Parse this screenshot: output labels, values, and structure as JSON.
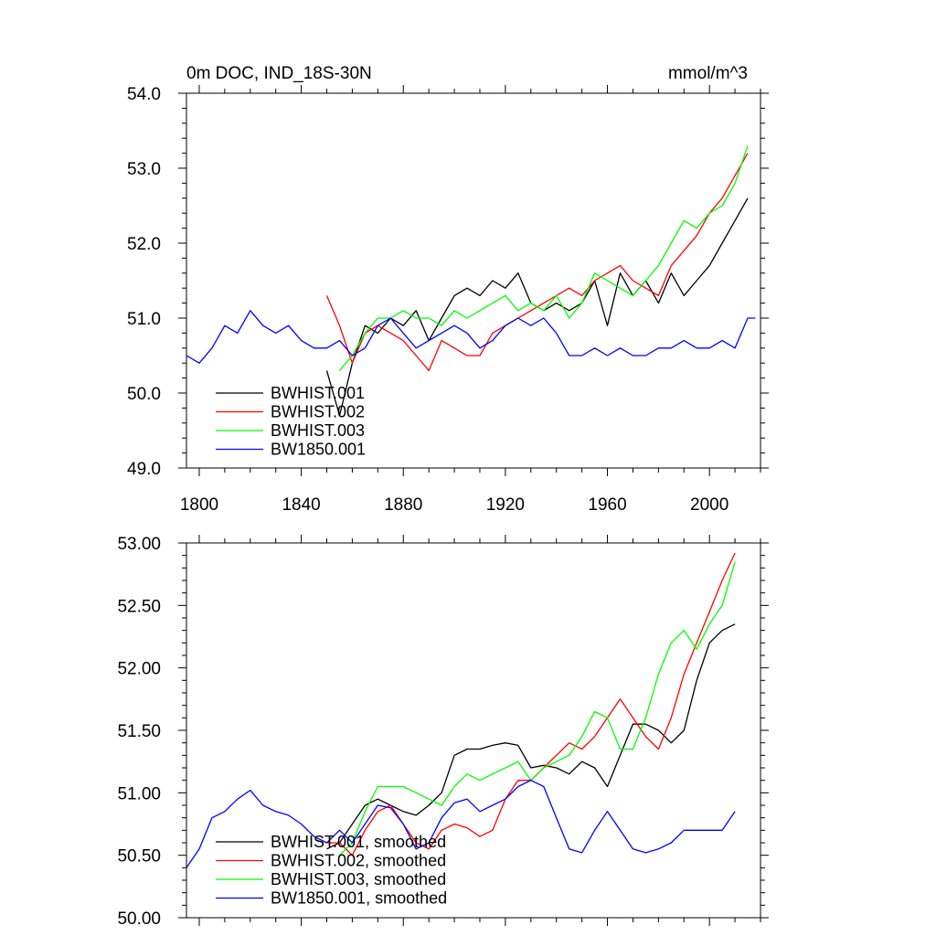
{
  "chart_data": [
    {
      "type": "line",
      "title": "0m DOC, IND_18S-30N",
      "unit_label": "mmol/m^3",
      "xlim": [
        1795,
        2020
      ],
      "ylim": [
        49.0,
        54.0
      ],
      "x_ticks": [
        1800,
        1840,
        1880,
        1920,
        1960,
        2000
      ],
      "x_tick_labels": [
        "1800",
        "1840",
        "1880",
        "1920",
        "1960",
        "2000"
      ],
      "y_ticks": [
        49,
        50,
        51,
        52,
        53,
        54
      ],
      "y_tick_labels": [
        "49.0",
        "50.0",
        "51.0",
        "52.0",
        "53.0",
        "54.0"
      ],
      "legend_position": "bottom-left",
      "grid": false,
      "series": [
        {
          "name": "BWHIST.001",
          "color": "#000000",
          "x": [
            1850,
            1855,
            1860,
            1865,
            1870,
            1875,
            1880,
            1885,
            1890,
            1895,
            1900,
            1905,
            1910,
            1915,
            1920,
            1925,
            1930,
            1935,
            1940,
            1945,
            1950,
            1955,
            1960,
            1965,
            1970,
            1975,
            1980,
            1985,
            1990,
            1995,
            2000,
            2005,
            2010,
            2015
          ],
          "y": [
            50.3,
            49.7,
            50.4,
            50.9,
            50.8,
            51.0,
            50.9,
            51.1,
            50.7,
            51.0,
            51.3,
            51.4,
            51.3,
            51.5,
            51.4,
            51.6,
            51.2,
            51.1,
            51.2,
            51.1,
            51.2,
            51.5,
            50.9,
            51.6,
            51.3,
            51.5,
            51.2,
            51.6,
            51.3,
            51.5,
            51.7,
            52.0,
            52.3,
            52.6
          ]
        },
        {
          "name": "BWHIST.002",
          "color": "#ff0000",
          "x": [
            1850,
            1855,
            1860,
            1865,
            1870,
            1875,
            1880,
            1885,
            1890,
            1895,
            1900,
            1905,
            1910,
            1915,
            1920,
            1925,
            1930,
            1935,
            1940,
            1945,
            1950,
            1955,
            1960,
            1965,
            1970,
            1975,
            1980,
            1985,
            1990,
            1995,
            2000,
            2005,
            2010,
            2015
          ],
          "y": [
            51.3,
            50.9,
            50.4,
            50.8,
            50.9,
            50.8,
            50.7,
            50.5,
            50.3,
            50.7,
            50.6,
            50.5,
            50.5,
            50.8,
            50.9,
            51.0,
            51.1,
            51.2,
            51.3,
            51.4,
            51.3,
            51.5,
            51.6,
            51.7,
            51.5,
            51.4,
            51.3,
            51.7,
            51.9,
            52.1,
            52.4,
            52.6,
            52.9,
            53.2
          ]
        },
        {
          "name": "BWHIST.003",
          "color": "#00ff00",
          "x": [
            1855,
            1860,
            1865,
            1870,
            1875,
            1880,
            1885,
            1890,
            1895,
            1900,
            1905,
            1910,
            1915,
            1920,
            1925,
            1930,
            1935,
            1940,
            1945,
            1950,
            1955,
            1960,
            1965,
            1970,
            1975,
            1980,
            1985,
            1990,
            1995,
            2000,
            2005,
            2010,
            2015
          ],
          "y": [
            50.3,
            50.5,
            50.8,
            51.0,
            51.0,
            51.1,
            51.0,
            51.0,
            50.9,
            51.1,
            51.0,
            51.1,
            51.2,
            51.3,
            51.1,
            51.2,
            51.1,
            51.3,
            51.0,
            51.2,
            51.6,
            51.5,
            51.4,
            51.3,
            51.5,
            51.7,
            52.0,
            52.3,
            52.2,
            52.4,
            52.5,
            52.8,
            53.3
          ]
        },
        {
          "name": "BW1850.001",
          "color": "#0000ff",
          "x": [
            1795,
            1800,
            1805,
            1810,
            1815,
            1820,
            1825,
            1830,
            1835,
            1840,
            1845,
            1850,
            1855,
            1860,
            1865,
            1870,
            1875,
            1880,
            1885,
            1890,
            1895,
            1900,
            1905,
            1910,
            1915,
            1920,
            1925,
            1930,
            1935,
            1940,
            1945,
            1950,
            1955,
            1960,
            1965,
            1970,
            1975,
            1980,
            1985,
            1990,
            1995,
            2000,
            2005,
            2010,
            2015,
            2018
          ],
          "y": [
            50.5,
            50.4,
            50.6,
            50.9,
            50.8,
            51.1,
            50.9,
            50.8,
            50.9,
            50.7,
            50.6,
            50.6,
            50.7,
            50.5,
            50.6,
            50.9,
            51.0,
            50.8,
            50.6,
            50.7,
            50.8,
            50.9,
            50.8,
            50.6,
            50.7,
            50.9,
            51.0,
            50.9,
            51.0,
            50.8,
            50.5,
            50.5,
            50.6,
            50.5,
            50.6,
            50.5,
            50.5,
            50.6,
            50.6,
            50.7,
            50.6,
            50.6,
            50.7,
            50.6,
            51.0,
            51.0
          ]
        }
      ]
    },
    {
      "type": "line",
      "title": "",
      "unit_label": "",
      "xlim": [
        1795,
        2020
      ],
      "ylim": [
        50.0,
        53.0
      ],
      "x_ticks": [
        1800,
        1840,
        1880,
        1920,
        1960,
        2000
      ],
      "x_tick_labels": [
        "",
        "",
        "",
        "",
        "",
        ""
      ],
      "y_ticks": [
        50.0,
        50.5,
        51.0,
        51.5,
        52.0,
        52.5,
        53.0
      ],
      "y_tick_labels": [
        "50.00",
        "50.50",
        "51.00",
        "51.50",
        "52.00",
        "52.50",
        "53.00"
      ],
      "legend_position": "bottom-left",
      "grid": false,
      "series": [
        {
          "name": "BWHIST.001, smoothed",
          "color": "#000000",
          "x": [
            1850,
            1855,
            1860,
            1865,
            1870,
            1875,
            1880,
            1885,
            1890,
            1895,
            1900,
            1905,
            1910,
            1915,
            1920,
            1925,
            1930,
            1935,
            1940,
            1945,
            1950,
            1955,
            1960,
            1965,
            1970,
            1975,
            1980,
            1985,
            1990,
            1995,
            2000,
            2005,
            2010
          ],
          "y": [
            50.55,
            50.6,
            50.75,
            50.9,
            50.95,
            50.9,
            50.85,
            50.82,
            50.9,
            51.0,
            51.3,
            51.35,
            51.35,
            51.38,
            51.4,
            51.38,
            51.2,
            51.22,
            51.2,
            51.15,
            51.25,
            51.2,
            51.05,
            51.3,
            51.55,
            51.55,
            51.5,
            51.4,
            51.5,
            51.9,
            52.2,
            52.3,
            52.35
          ]
        },
        {
          "name": "BWHIST.002, smoothed",
          "color": "#ff0000",
          "x": [
            1850,
            1855,
            1860,
            1865,
            1870,
            1875,
            1880,
            1885,
            1890,
            1895,
            1900,
            1905,
            1910,
            1915,
            1920,
            1925,
            1930,
            1935,
            1940,
            1945,
            1950,
            1955,
            1960,
            1965,
            1970,
            1975,
            1980,
            1985,
            1990,
            1995,
            2000,
            2005,
            2010
          ],
          "y": [
            50.6,
            50.6,
            50.5,
            50.7,
            50.85,
            50.9,
            50.75,
            50.6,
            50.55,
            50.7,
            50.75,
            50.72,
            50.65,
            50.7,
            50.95,
            51.1,
            51.1,
            51.2,
            51.3,
            51.4,
            51.35,
            51.45,
            51.6,
            51.75,
            51.6,
            51.45,
            51.35,
            51.6,
            51.95,
            52.2,
            52.45,
            52.7,
            52.92
          ]
        },
        {
          "name": "BWHIST.003, smoothed",
          "color": "#00ff00",
          "x": [
            1855,
            1860,
            1865,
            1870,
            1875,
            1880,
            1885,
            1890,
            1895,
            1900,
            1905,
            1910,
            1915,
            1920,
            1925,
            1930,
            1935,
            1940,
            1945,
            1950,
            1955,
            1960,
            1965,
            1970,
            1975,
            1980,
            1985,
            1990,
            1995,
            2000,
            2005,
            2010
          ],
          "y": [
            50.5,
            50.6,
            50.85,
            51.05,
            51.05,
            51.05,
            51.0,
            50.95,
            50.9,
            51.05,
            51.15,
            51.1,
            51.15,
            51.2,
            51.25,
            51.1,
            51.2,
            51.25,
            51.3,
            51.45,
            51.65,
            51.6,
            51.35,
            51.35,
            51.6,
            51.95,
            52.2,
            52.3,
            52.15,
            52.35,
            52.5,
            52.85
          ]
        },
        {
          "name": "BW1850.001, smoothed",
          "color": "#0000ff",
          "x": [
            1795,
            1800,
            1805,
            1810,
            1815,
            1820,
            1825,
            1830,
            1835,
            1840,
            1845,
            1850,
            1855,
            1860,
            1865,
            1870,
            1875,
            1880,
            1885,
            1890,
            1895,
            1900,
            1905,
            1910,
            1915,
            1920,
            1925,
            1930,
            1935,
            1940,
            1945,
            1950,
            1955,
            1960,
            1965,
            1970,
            1975,
            1980,
            1985,
            1990,
            1995,
            2000,
            2005,
            2010
          ],
          "y": [
            50.4,
            50.55,
            50.8,
            50.85,
            50.95,
            51.02,
            50.9,
            50.85,
            50.82,
            50.75,
            50.65,
            50.6,
            50.7,
            50.6,
            50.75,
            50.9,
            50.88,
            50.75,
            50.55,
            50.6,
            50.8,
            50.92,
            50.95,
            50.85,
            50.9,
            50.95,
            51.05,
            51.1,
            51.05,
            50.8,
            50.55,
            50.52,
            50.7,
            50.85,
            50.7,
            50.55,
            50.52,
            50.55,
            50.6,
            50.7,
            50.7,
            50.7,
            50.7,
            50.85
          ]
        }
      ]
    }
  ]
}
